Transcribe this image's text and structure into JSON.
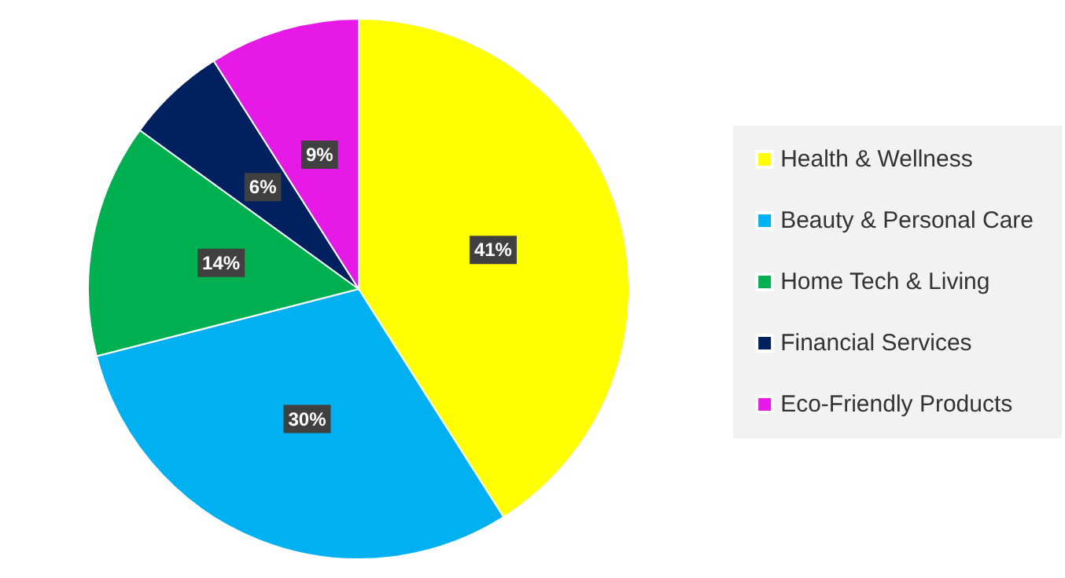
{
  "chart_data": {
    "type": "pie",
    "categories": [
      "Health & Wellness",
      "Beauty & Personal Care",
      "Home Tech & Living",
      "Financial Services",
      "Eco-Friendly Products"
    ],
    "values": [
      41,
      30,
      14,
      6,
      9
    ],
    "colors": [
      "#ffff00",
      "#00b0f0",
      "#00b050",
      "#002060",
      "#e619e6"
    ],
    "value_labels": [
      "41%",
      "30%",
      "14%",
      "6%",
      "9%"
    ],
    "legend": "right"
  }
}
